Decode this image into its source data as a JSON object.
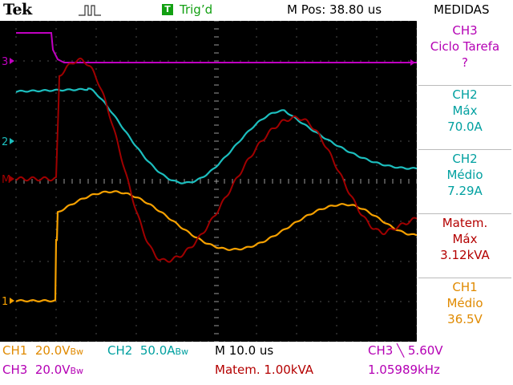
{
  "header": {
    "brand": "Tek",
    "trigger_badge": "T",
    "trigger_state": "Trig’d",
    "m_pos": "M Pos: 38.80 us",
    "measurements_title": "MEDIDAS"
  },
  "measurements": [
    {
      "source": "CH3",
      "name": "Ciclo Tarefa",
      "value": "?"
    },
    {
      "source": "CH2",
      "name": "Máx",
      "value": "70.0A"
    },
    {
      "source": "CH2",
      "name": "Médio",
      "value": "7.29A"
    },
    {
      "source": "Matem.",
      "name": "Máx",
      "value": "3.12kVA"
    },
    {
      "source": "CH1",
      "name": "Médio",
      "value": "36.5V"
    }
  ],
  "channel_markers": {
    "ch3": "3",
    "ch2": "2",
    "math": "M",
    "ch1": "1"
  },
  "status": {
    "ch1_label": "CH1",
    "ch1_scale": "20.0V",
    "ch1_bw": "Bw",
    "ch2_label": "CH2",
    "ch2_scale": "50.0A",
    "ch2_bw": "Bw",
    "timebase": "M 10.0 us",
    "trigger_source": "CH3",
    "trigger_slope": "╲",
    "trigger_level": "5.60V",
    "ch3_label": "CH3",
    "ch3_scale": "20.0V",
    "ch3_bw": "Bw",
    "math_scale": "Matem. 1.00kVA",
    "frequency": "1.05989kHz"
  },
  "colors": {
    "ch1": "#f5a000",
    "ch2": "#1cbebe",
    "ch3": "#c000c0",
    "math": "#a00000",
    "grid": "#9a9a9a"
  }
}
